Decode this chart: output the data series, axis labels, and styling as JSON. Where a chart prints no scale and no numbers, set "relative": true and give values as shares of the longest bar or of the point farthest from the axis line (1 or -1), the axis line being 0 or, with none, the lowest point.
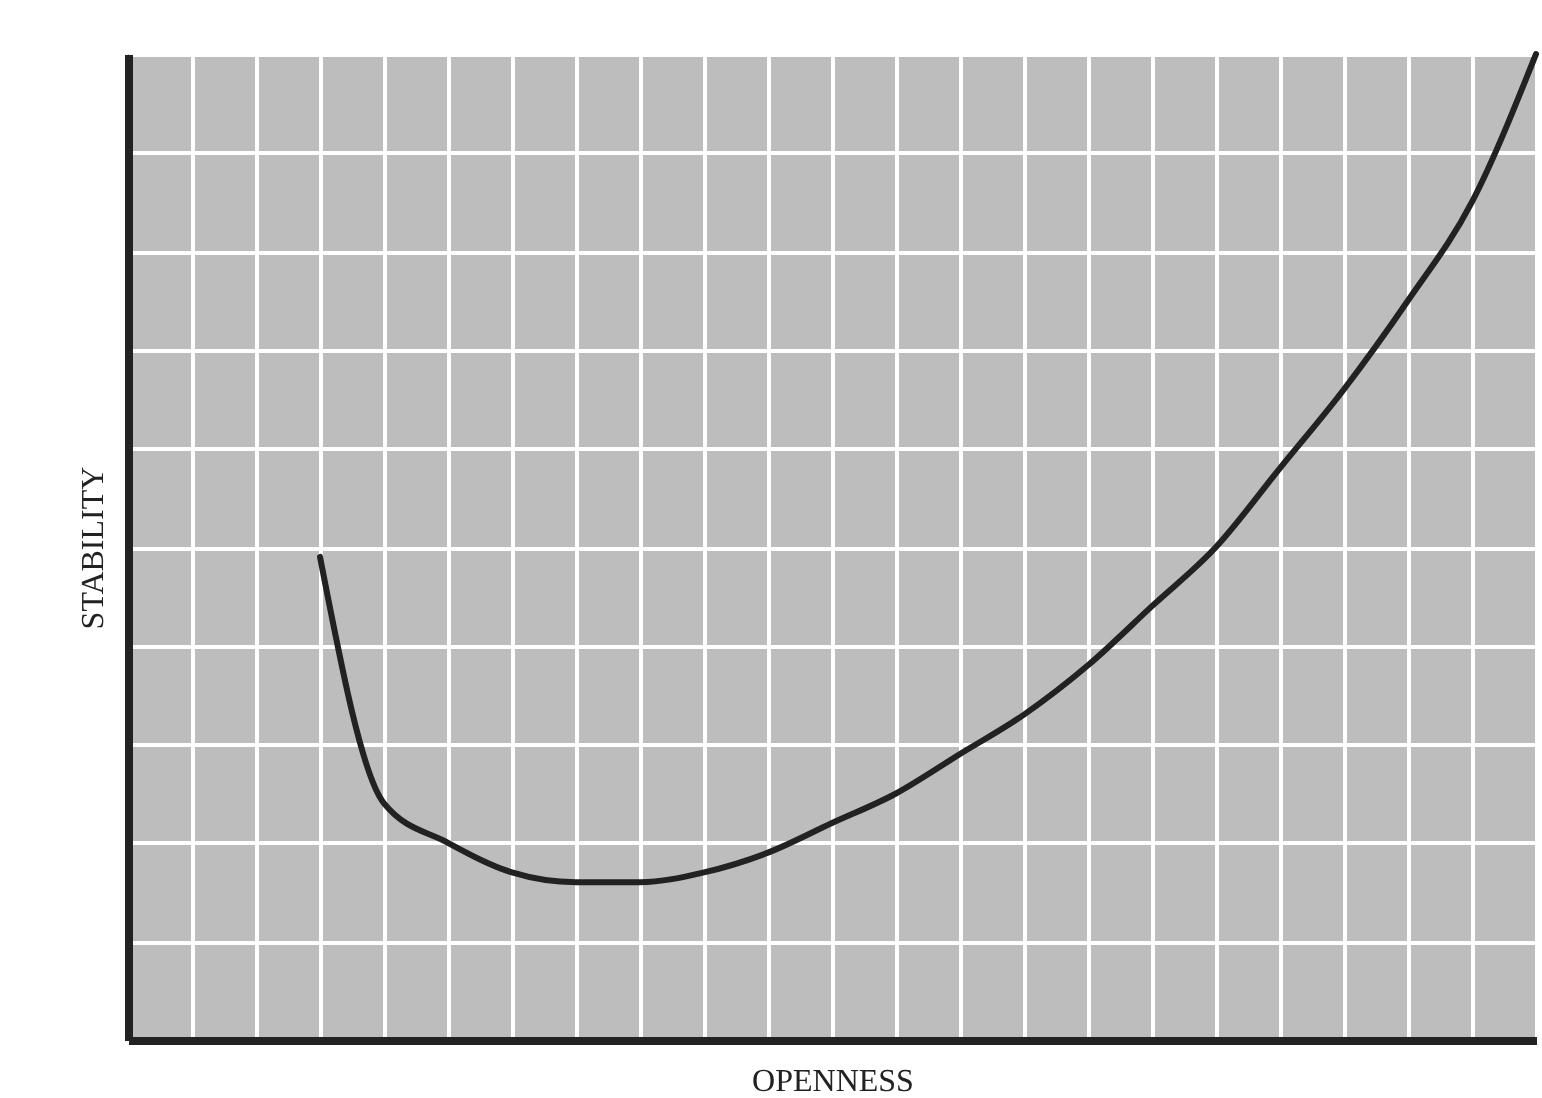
{
  "chart_data": {
    "type": "line",
    "relative": true,
    "xlabel": "OPENNESS",
    "ylabel": "STABILITY",
    "categories": [
      null,
      null,
      null,
      null,
      null,
      null,
      null,
      null,
      null,
      null,
      null,
      null,
      null,
      null,
      null,
      null,
      null,
      null,
      null,
      null,
      null,
      null,
      null
    ],
    "series": [
      {
        "color": "#222222",
        "values": [
          null,
          null,
          null,
          0.49,
          0.24,
          0.2,
          0.17,
          0.16,
          0.16,
          0.17,
          0.19,
          0.22,
          0.25,
          0.29,
          0.33,
          0.38,
          0.44,
          0.5,
          0.58,
          0.66,
          0.75,
          0.85,
          1
        ]
      }
    ],
    "grid": true,
    "marker": "none",
    "line_style": "solid"
  }
}
